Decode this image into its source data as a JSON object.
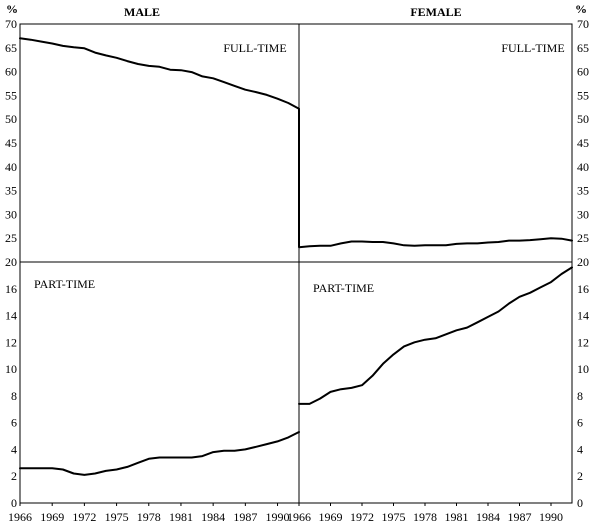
{
  "chart_data": {
    "type": "line",
    "unit_left": "%",
    "unit_right": "%",
    "columns": [
      "MALE",
      "FEMALE"
    ],
    "x_ticks": [
      "1966",
      "1969",
      "1972",
      "1975",
      "1978",
      "1981",
      "1984",
      "1987",
      "1990"
    ],
    "xlim": [
      1966,
      1992
    ],
    "top_ylim": [
      20,
      70
    ],
    "top_ticks": [
      "20",
      "25",
      "30",
      "35",
      "40",
      "45",
      "50",
      "55",
      "60",
      "65",
      "70"
    ],
    "bottom_ylim": [
      0,
      18
    ],
    "bottom_ticks": [
      "0",
      "2",
      "4",
      "6",
      "8",
      "10",
      "12",
      "14",
      "16"
    ],
    "panels": [
      {
        "label": "FULL-TIME",
        "row": "top",
        "col": "MALE",
        "x": [
          1966,
          1967,
          1968,
          1969,
          1970,
          1971,
          1972,
          1973,
          1974,
          1975,
          1976,
          1977,
          1978,
          1979,
          1980,
          1981,
          1982,
          1983,
          1984,
          1985,
          1986,
          1987,
          1988,
          1989,
          1990,
          1991,
          1992
        ],
        "y": [
          67.0,
          66.7,
          66.3,
          65.9,
          65.4,
          65.1,
          64.9,
          64.0,
          63.4,
          62.9,
          62.2,
          61.6,
          61.2,
          61.0,
          60.4,
          60.3,
          59.9,
          59.0,
          58.6,
          57.8,
          57.0,
          56.2,
          55.7,
          55.1,
          54.3,
          53.4,
          52.2
        ]
      },
      {
        "label": "FULL-TIME",
        "row": "top",
        "col": "FEMALE",
        "x": [
          1966,
          1967,
          1968,
          1969,
          1970,
          1971,
          1972,
          1973,
          1974,
          1975,
          1976,
          1977,
          1978,
          1979,
          1980,
          1981,
          1982,
          1983,
          1984,
          1985,
          1986,
          1987,
          1988,
          1989,
          1990,
          1991,
          1992
        ],
        "y": [
          23.1,
          23.3,
          23.4,
          23.4,
          23.9,
          24.3,
          24.3,
          24.2,
          24.2,
          23.9,
          23.5,
          23.4,
          23.5,
          23.5,
          23.5,
          23.8,
          23.9,
          23.9,
          24.1,
          24.2,
          24.5,
          24.5,
          24.6,
          24.8,
          25.0,
          24.9,
          24.5
        ]
      },
      {
        "label": "PART-TIME",
        "row": "bottom",
        "col": "MALE",
        "x": [
          1966,
          1967,
          1968,
          1969,
          1970,
          1971,
          1972,
          1973,
          1974,
          1975,
          1976,
          1977,
          1978,
          1979,
          1980,
          1981,
          1982,
          1983,
          1984,
          1985,
          1986,
          1987,
          1988,
          1989,
          1990,
          1991,
          1992
        ],
        "y": [
          2.6,
          2.6,
          2.6,
          2.6,
          2.5,
          2.2,
          2.1,
          2.2,
          2.4,
          2.5,
          2.7,
          3.0,
          3.3,
          3.4,
          3.4,
          3.4,
          3.4,
          3.5,
          3.8,
          3.9,
          3.9,
          4.0,
          4.2,
          4.4,
          4.6,
          4.9,
          5.3
        ]
      },
      {
        "label": "PART-TIME",
        "row": "bottom",
        "col": "FEMALE",
        "x": [
          1966,
          1967,
          1968,
          1969,
          1970,
          1971,
          1972,
          1973,
          1974,
          1975,
          1976,
          1977,
          1978,
          1979,
          1980,
          1981,
          1982,
          1983,
          1984,
          1985,
          1986,
          1987,
          1988,
          1989,
          1990,
          1991,
          1992
        ],
        "y": [
          7.4,
          7.4,
          7.8,
          8.3,
          8.5,
          8.6,
          8.8,
          9.5,
          10.4,
          11.1,
          11.7,
          12.0,
          12.2,
          12.3,
          12.6,
          12.9,
          13.1,
          13.5,
          13.9,
          14.3,
          14.9,
          15.4,
          15.7,
          16.1,
          16.5,
          17.1,
          17.6
        ]
      }
    ],
    "grid": false
  }
}
